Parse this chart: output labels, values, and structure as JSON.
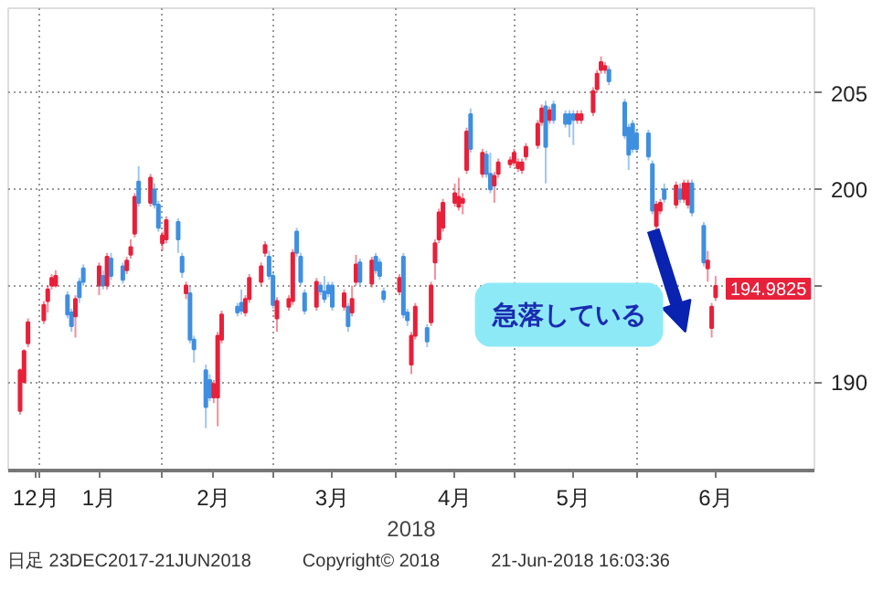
{
  "chart_data": {
    "type": "candlestick",
    "x": [
      "2017-12-27",
      "2017-12-28",
      "2017-12-29",
      "2018-01-02",
      "2018-01-03",
      "2018-01-04",
      "2018-01-05",
      "2018-01-08",
      "2018-01-09",
      "2018-01-10",
      "2018-01-11",
      "2018-01-12",
      "2018-01-16",
      "2018-01-17",
      "2018-01-18",
      "2018-01-19",
      "2018-01-22",
      "2018-01-23",
      "2018-01-24",
      "2018-01-25",
      "2018-01-26",
      "2018-01-29",
      "2018-01-30",
      "2018-01-31",
      "2018-02-01",
      "2018-02-02",
      "2018-02-05",
      "2018-02-06",
      "2018-02-07",
      "2018-02-08",
      "2018-02-09",
      "2018-02-12",
      "2018-02-13",
      "2018-02-14",
      "2018-02-15",
      "2018-02-16",
      "2018-02-20",
      "2018-02-21",
      "2018-02-22",
      "2018-02-23",
      "2018-02-26",
      "2018-02-27",
      "2018-02-28",
      "2018-03-01",
      "2018-03-02",
      "2018-03-05",
      "2018-03-06",
      "2018-03-07",
      "2018-03-08",
      "2018-03-09",
      "2018-03-12",
      "2018-03-13",
      "2018-03-14",
      "2018-03-15",
      "2018-03-16",
      "2018-03-19",
      "2018-03-20",
      "2018-03-21",
      "2018-03-22",
      "2018-03-23",
      "2018-03-26",
      "2018-03-27",
      "2018-03-28",
      "2018-03-29",
      "2018-04-02",
      "2018-04-03",
      "2018-04-04",
      "2018-04-05",
      "2018-04-06",
      "2018-04-09",
      "2018-04-10",
      "2018-04-11",
      "2018-04-12",
      "2018-04-13",
      "2018-04-16",
      "2018-04-17",
      "2018-04-18",
      "2018-04-19",
      "2018-04-20",
      "2018-04-23",
      "2018-04-24",
      "2018-04-25",
      "2018-04-26",
      "2018-04-27",
      "2018-04-30",
      "2018-05-01",
      "2018-05-02",
      "2018-05-03",
      "2018-05-04",
      "2018-05-07",
      "2018-05-08",
      "2018-05-09",
      "2018-05-10",
      "2018-05-11",
      "2018-05-14",
      "2018-05-15",
      "2018-05-16",
      "2018-05-17",
      "2018-05-18",
      "2018-05-21",
      "2018-05-22",
      "2018-05-23",
      "2018-05-24",
      "2018-05-25",
      "2018-05-29",
      "2018-05-30",
      "2018-05-31",
      "2018-06-01",
      "2018-06-04",
      "2018-06-05",
      "2018-06-06",
      "2018-06-07",
      "2018-06-08",
      "2018-06-11",
      "2018-06-12",
      "2018-06-13",
      "2018-06-14",
      "2018-06-15",
      "2018-06-18",
      "2018-06-19",
      "2018-06-20",
      "2018-06-21"
    ],
    "ohlc": [
      [
        188.5,
        190.7,
        188.3,
        190.6
      ],
      [
        190.0,
        191.7,
        189.9,
        191.6
      ],
      [
        192.0,
        193.3,
        191.8,
        193.1
      ],
      [
        193.2,
        194.2,
        193.0,
        194.0
      ],
      [
        194.2,
        195.0,
        193.6,
        194.8
      ],
      [
        195.0,
        195.6,
        194.8,
        195.4
      ],
      [
        195.0,
        195.8,
        194.9,
        195.5
      ],
      [
        194.5,
        194.7,
        193.3,
        193.5
      ],
      [
        193.6,
        193.8,
        192.6,
        192.9
      ],
      [
        193.4,
        194.5,
        192.3,
        194.3
      ],
      [
        195.2,
        195.4,
        194.1,
        194.4
      ],
      [
        195.9,
        196.1,
        195.0,
        195.2
      ],
      [
        195.0,
        196.2,
        194.5,
        196.0
      ],
      [
        195.5,
        195.8,
        194.8,
        195.0
      ],
      [
        195.0,
        196.7,
        194.8,
        196.5
      ],
      [
        196.4,
        196.7,
        195.3,
        195.5
      ],
      [
        196.0,
        196.2,
        195.1,
        195.3
      ],
      [
        195.8,
        196.5,
        195.6,
        196.3
      ],
      [
        196.6,
        197.4,
        196.4,
        197.0
      ],
      [
        197.7,
        199.8,
        197.5,
        199.6
      ],
      [
        200.4,
        201.2,
        199.1,
        199.3
      ],
      [
        199.3,
        200.8,
        199.1,
        200.6
      ],
      [
        200.0,
        200.3,
        199.0,
        199.2
      ],
      [
        199.2,
        199.4,
        197.8,
        198.0
      ],
      [
        197.2,
        197.8,
        196.8,
        197.6
      ],
      [
        197.4,
        198.6,
        197.2,
        198.4
      ],
      [
        198.3,
        198.5,
        196.7,
        197.4
      ],
      [
        196.5,
        196.7,
        195.4,
        195.7
      ],
      [
        194.6,
        195.2,
        194.3,
        195.0
      ],
      [
        194.6,
        195.0,
        192.0,
        192.2
      ],
      [
        192.2,
        192.4,
        191.0,
        191.7
      ],
      [
        190.6,
        190.9,
        187.6,
        188.7
      ],
      [
        190.1,
        190.4,
        189.0,
        189.2
      ],
      [
        189.2,
        190.1,
        188.9,
        189.9
      ],
      [
        189.2,
        192.6,
        187.7,
        192.4
      ],
      [
        192.2,
        193.7,
        192.0,
        193.5
      ],
      [
        193.9,
        194.1,
        193.4,
        193.6
      ],
      [
        194.1,
        194.8,
        193.5,
        193.7
      ],
      [
        193.6,
        194.5,
        193.4,
        194.3
      ],
      [
        194.3,
        195.6,
        194.1,
        195.4
      ],
      [
        195.2,
        196.2,
        195.0,
        196.0
      ],
      [
        196.7,
        197.3,
        196.5,
        197.1
      ],
      [
        196.5,
        196.8,
        195.3,
        195.5
      ],
      [
        195.5,
        195.7,
        193.8,
        194.0
      ],
      [
        193.3,
        194.4,
        192.6,
        194.2
      ],
      [
        193.9,
        194.5,
        193.7,
        194.3
      ],
      [
        194.2,
        196.9,
        194.0,
        196.7
      ],
      [
        197.8,
        198.0,
        196.5,
        196.7
      ],
      [
        196.5,
        196.7,
        195.0,
        195.2
      ],
      [
        194.6,
        194.8,
        193.5,
        193.7
      ],
      [
        193.9,
        195.4,
        193.7,
        195.2
      ],
      [
        195.0,
        195.2,
        194.5,
        194.7
      ],
      [
        194.7,
        195.5,
        194.1,
        194.3
      ],
      [
        195.0,
        195.2,
        194.4,
        194.6
      ],
      [
        195.0,
        195.2,
        193.7,
        193.9
      ],
      [
        193.9,
        194.8,
        193.7,
        194.6
      ],
      [
        193.9,
        194.1,
        192.6,
        192.9
      ],
      [
        193.6,
        195.0,
        193.4,
        194.3
      ],
      [
        195.2,
        196.6,
        195.0,
        196.1
      ],
      [
        196.2,
        196.4,
        195.0,
        195.2
      ],
      [
        195.1,
        196.5,
        194.9,
        196.3
      ],
      [
        196.5,
        196.7,
        195.6,
        195.8
      ],
      [
        196.2,
        196.4,
        195.3,
        195.5
      ],
      [
        194.7,
        194.9,
        194.1,
        194.3
      ],
      [
        194.7,
        195.6,
        194.5,
        195.4
      ],
      [
        196.5,
        196.7,
        193.3,
        193.5
      ],
      [
        193.6,
        193.8,
        192.9,
        193.2
      ],
      [
        190.9,
        192.6,
        190.4,
        192.4
      ],
      [
        192.4,
        194.1,
        192.2,
        193.9
      ],
      [
        192.8,
        193.0,
        191.8,
        192.1
      ],
      [
        193.1,
        195.2,
        192.9,
        195.0
      ],
      [
        196.2,
        197.4,
        195.3,
        197.2
      ],
      [
        197.4,
        199.0,
        197.2,
        198.8
      ],
      [
        198.0,
        199.5,
        197.8,
        199.3
      ],
      [
        199.3,
        200.3,
        199.1,
        199.8
      ],
      [
        199.1,
        200.6,
        198.9,
        199.6
      ],
      [
        199.3,
        199.8,
        198.7,
        199.5
      ],
      [
        201.0,
        203.2,
        200.8,
        203.0
      ],
      [
        203.9,
        204.2,
        201.9,
        202.1
      ],
      [
        200.8,
        202.1,
        200.6,
        201.9
      ],
      [
        201.8,
        202.0,
        200.6,
        200.8
      ],
      [
        200.8,
        201.9,
        199.8,
        200.0
      ],
      [
        200.2,
        200.9,
        199.3,
        200.7
      ],
      [
        200.8,
        201.6,
        200.6,
        201.4
      ],
      [
        201.3,
        201.7,
        201.1,
        201.5
      ],
      [
        201.4,
        202.1,
        201.2,
        201.9
      ],
      [
        201.1,
        201.6,
        200.9,
        201.4
      ],
      [
        201.0,
        201.6,
        200.8,
        201.4
      ],
      [
        201.7,
        202.4,
        201.5,
        202.2
      ],
      [
        202.3,
        203.6,
        202.1,
        203.4
      ],
      [
        203.5,
        204.4,
        203.3,
        204.2
      ],
      [
        204.3,
        204.6,
        200.3,
        202.2
      ],
      [
        203.6,
        204.3,
        203.4,
        204.1
      ],
      [
        204.4,
        204.6,
        203.4,
        203.6
      ],
      [
        203.9,
        204.1,
        203.2,
        203.4
      ],
      [
        203.9,
        204.1,
        202.7,
        203.4
      ],
      [
        203.9,
        204.1,
        202.3,
        203.6
      ],
      [
        203.6,
        204.1,
        203.4,
        203.9
      ],
      [
        203.6,
        204.1,
        203.4,
        203.9
      ],
      [
        204.0,
        205.3,
        203.8,
        205.1
      ],
      [
        205.2,
        206.2,
        205.0,
        206.0
      ],
      [
        206.2,
        206.9,
        206.0,
        206.6
      ],
      [
        206.2,
        206.6,
        206.0,
        206.4
      ],
      [
        206.2,
        206.4,
        205.4,
        205.6
      ],
      [
        204.5,
        204.7,
        202.6,
        202.8
      ],
      [
        203.2,
        203.4,
        201.0,
        201.8
      ],
      [
        203.4,
        203.6,
        201.9,
        202.1
      ],
      [
        202.9,
        203.1,
        201.9,
        202.1
      ],
      [
        202.9,
        203.1,
        201.5,
        201.7
      ],
      [
        201.3,
        201.5,
        198.7,
        198.9
      ],
      [
        198.1,
        199.4,
        197.9,
        199.2
      ],
      [
        198.9,
        199.5,
        198.7,
        199.3
      ],
      [
        200.0,
        200.3,
        199.3,
        199.5
      ],
      [
        199.2,
        200.4,
        199.0,
        200.2
      ],
      [
        200.0,
        200.3,
        199.3,
        199.5
      ],
      [
        199.5,
        200.5,
        199.3,
        200.3
      ],
      [
        199.2,
        200.5,
        199.0,
        200.3
      ],
      [
        200.3,
        200.5,
        198.6,
        198.8
      ],
      [
        198.1,
        198.3,
        196.0,
        196.2
      ],
      [
        195.9,
        196.8,
        195.2,
        196.3
      ],
      [
        192.8,
        194.1,
        192.3,
        193.9
      ],
      [
        194.4,
        195.5,
        194.2,
        194.9825
      ]
    ],
    "xlim": [
      "2017-12-24",
      "2018-07-16"
    ],
    "xticks": [
      {
        "value": "2017-12-31",
        "label": "12月"
      },
      {
        "value": "2018-01-01",
        "label": null
      },
      {
        "value": "2018-01-16",
        "label": "1月"
      },
      {
        "value": "2018-02-01",
        "label": null
      },
      {
        "value": "2018-02-14",
        "label": "2月"
      },
      {
        "value": "2018-03-01",
        "label": null
      },
      {
        "value": "2018-03-16",
        "label": "3月"
      },
      {
        "value": "2018-04-01",
        "label": null
      },
      {
        "value": "2018-04-16",
        "label": "4月"
      },
      {
        "value": "2018-05-01",
        "label": null
      },
      {
        "value": "2018-05-16",
        "label": "5月"
      },
      {
        "value": "2018-06-01",
        "label": null
      },
      {
        "value": "2018-06-21",
        "label": "6月"
      }
    ],
    "ylim": [
      185.4,
      209.4
    ],
    "yticks": [
      190,
      {
        "value": 195,
        "label": null
      },
      200,
      205
    ],
    "xlabel": "2018",
    "grid": true,
    "annotations": [
      {
        "text": "194.9825",
        "x": "2018-06-21",
        "y": 194.9825
      },
      "急落している",
      "日足 23DEC2017-21JUN2018",
      "Copyright© 2018",
      "21-Jun-2018 16:03:36"
    ]
  }
}
